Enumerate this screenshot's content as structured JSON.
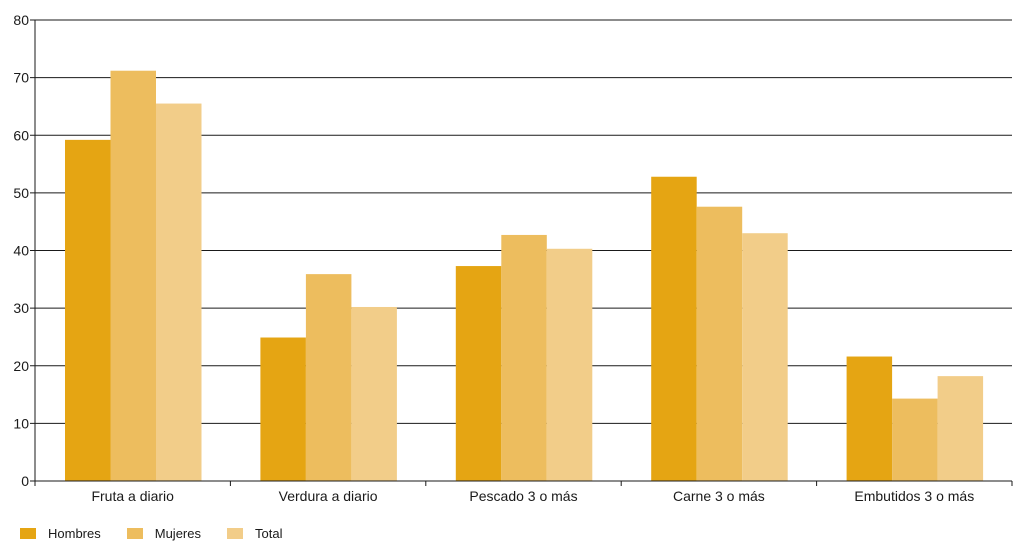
{
  "chart_data": {
    "type": "bar",
    "categories": [
      "Fruta a diario",
      "Verdura a diario",
      "Pescado 3 o más",
      "Carne 3 o más",
      "Embutidos 3 o más"
    ],
    "series": [
      {
        "name": "Hombres",
        "values": [
          59.2,
          24.9,
          37.3,
          52.8,
          21.6
        ],
        "color": "#e5a513"
      },
      {
        "name": "Mujeres",
        "values": [
          71.2,
          35.9,
          42.7,
          47.6,
          14.3
        ],
        "color": "#edbd5e"
      },
      {
        "name": "Total",
        "values": [
          65.5,
          30.2,
          40.3,
          43.0,
          18.2
        ],
        "color": "#f2cd89"
      }
    ],
    "ylim": [
      0,
      80
    ],
    "yticks": [
      "0",
      "10",
      "20",
      "30",
      "40",
      "50",
      "60",
      "70",
      "80"
    ],
    "grid": true,
    "legend_position": "bottom-left",
    "title": "",
    "xlabel": "",
    "ylabel": ""
  }
}
